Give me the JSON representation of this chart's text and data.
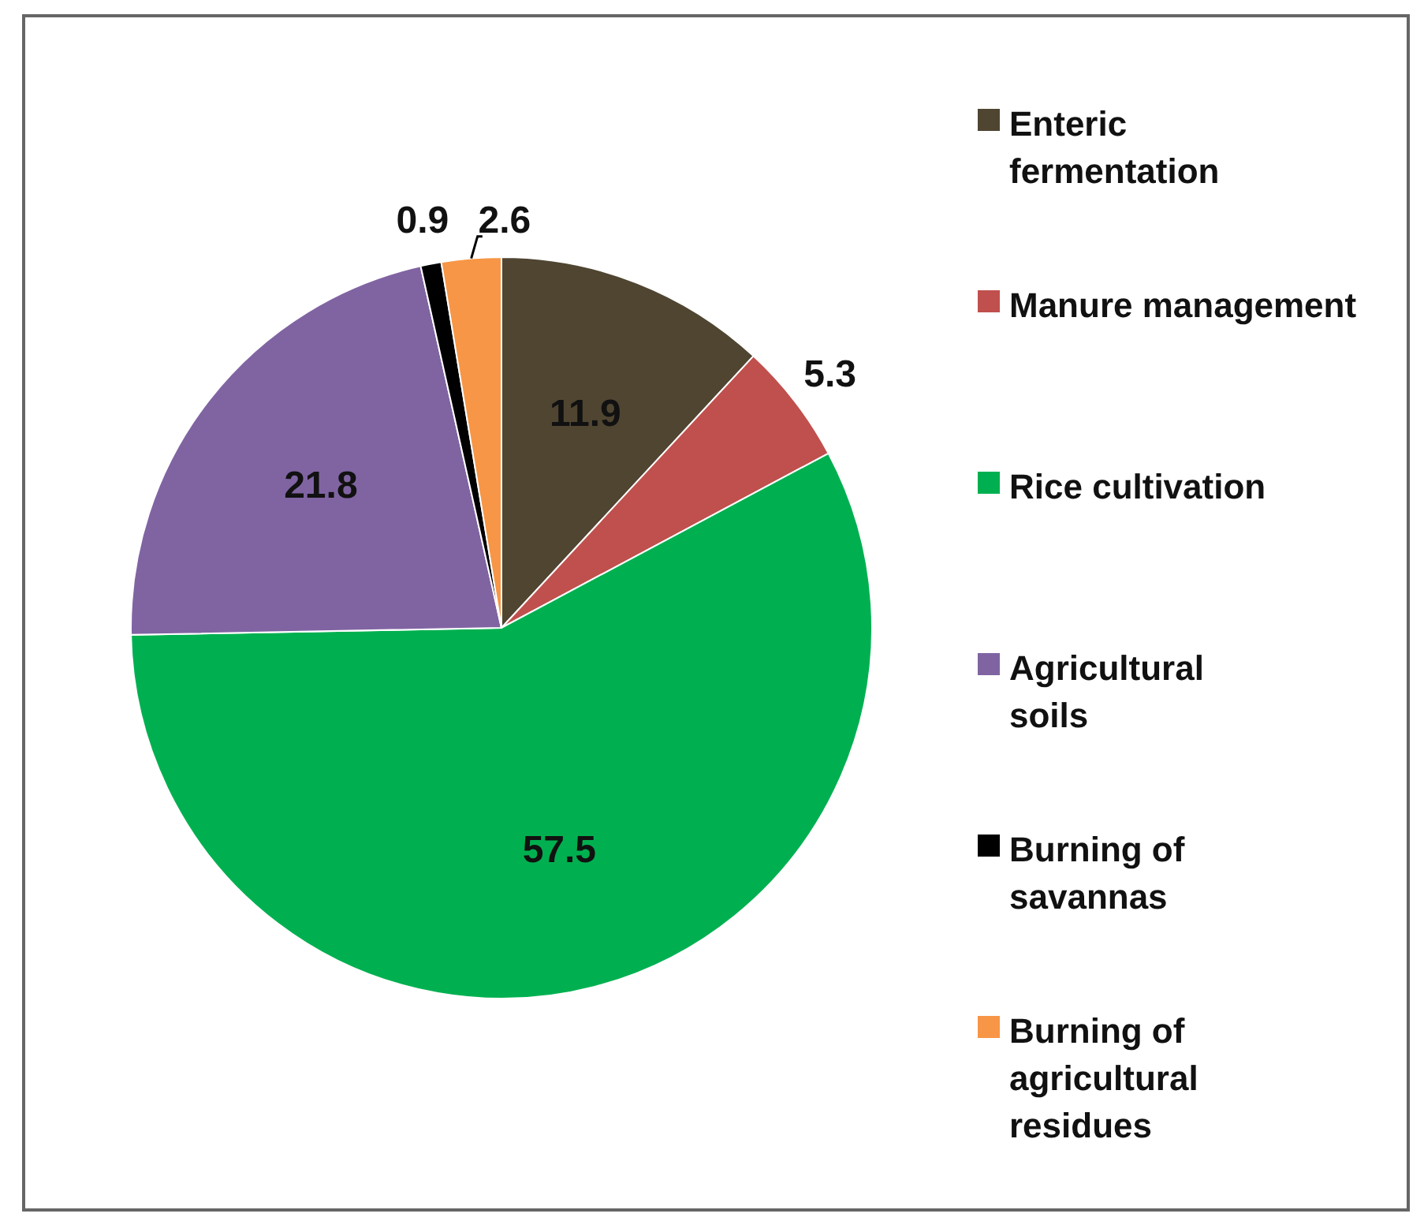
{
  "chart_data": {
    "type": "pie",
    "categories": [
      "Enteric fermentation",
      "Manure management",
      "Rice cultivation",
      "Agricultural soils",
      "Burning of savannas",
      "Burning of agricultural residues"
    ],
    "values": [
      11.9,
      5.3,
      57.5,
      21.8,
      0.9,
      2.6
    ],
    "colors": [
      "#4f4531",
      "#c0504d",
      "#00b050",
      "#8064a2",
      "#000000",
      "#f79646"
    ],
    "data_labels": true,
    "legend": "right"
  }
}
